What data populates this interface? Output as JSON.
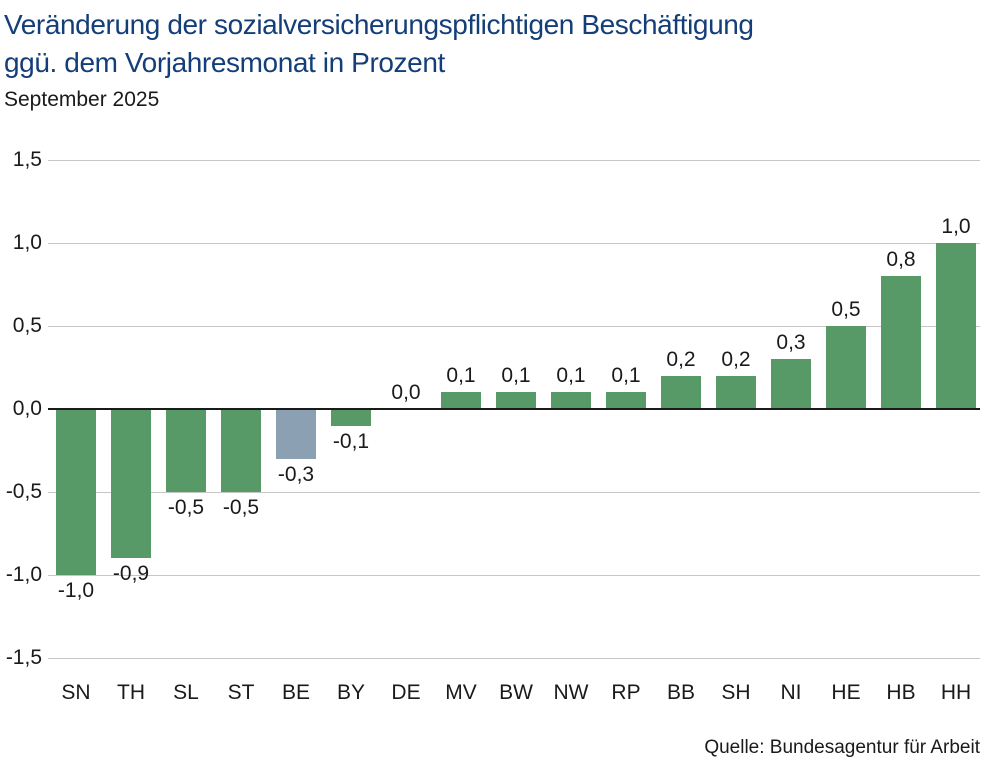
{
  "header": {
    "title_line1": "Veränderung der sozialversicherungspflichtigen Beschäftigung",
    "title_line2": "ggü. dem Vorjahresmonat in Prozent",
    "subtitle": "September 2025"
  },
  "source": "Quelle: Bundesagentur für Arbeit",
  "chart_data": {
    "type": "bar",
    "title": "Veränderung der sozialversicherungspflichtigen Beschäftigung ggü. dem Vorjahresmonat in Prozent",
    "subtitle": "September 2025",
    "categories": [
      "SN",
      "TH",
      "SL",
      "ST",
      "BE",
      "BY",
      "DE",
      "MV",
      "BW",
      "NW",
      "RP",
      "BB",
      "SH",
      "NI",
      "HE",
      "HB",
      "HH"
    ],
    "values": [
      -1.0,
      -0.9,
      -0.5,
      -0.5,
      -0.3,
      -0.1,
      0.0,
      0.1,
      0.1,
      0.1,
      0.1,
      0.2,
      0.2,
      0.3,
      0.5,
      0.8,
      1.0
    ],
    "value_labels": [
      "-1,0",
      "-0,9",
      "-0,5",
      "-0,5",
      "-0,3",
      "-0,1",
      "0,0",
      "0,1",
      "0,1",
      "0,1",
      "0,1",
      "0,2",
      "0,2",
      "0,3",
      "0,5",
      "0,8",
      "1,0"
    ],
    "highlight_category": "BE",
    "y_tick_values": [
      1.5,
      1.0,
      0.5,
      0.0,
      -0.5,
      -1.0,
      -1.5
    ],
    "y_tick_labels": [
      "1,5",
      "1,0",
      "0,5",
      "0,0",
      "-0,5",
      "-1,0",
      "-1,5"
    ],
    "ylim": [
      -1.5,
      1.5
    ],
    "grid": "horizontal",
    "legend": "none",
    "colors": {
      "bar": "#579a68",
      "highlight": "#8ca0b4",
      "title_text": "#143e78",
      "gridline": "#c6c6c6",
      "zero_line": "#1a1a1a",
      "label_text": "#1a1a1a"
    }
  }
}
